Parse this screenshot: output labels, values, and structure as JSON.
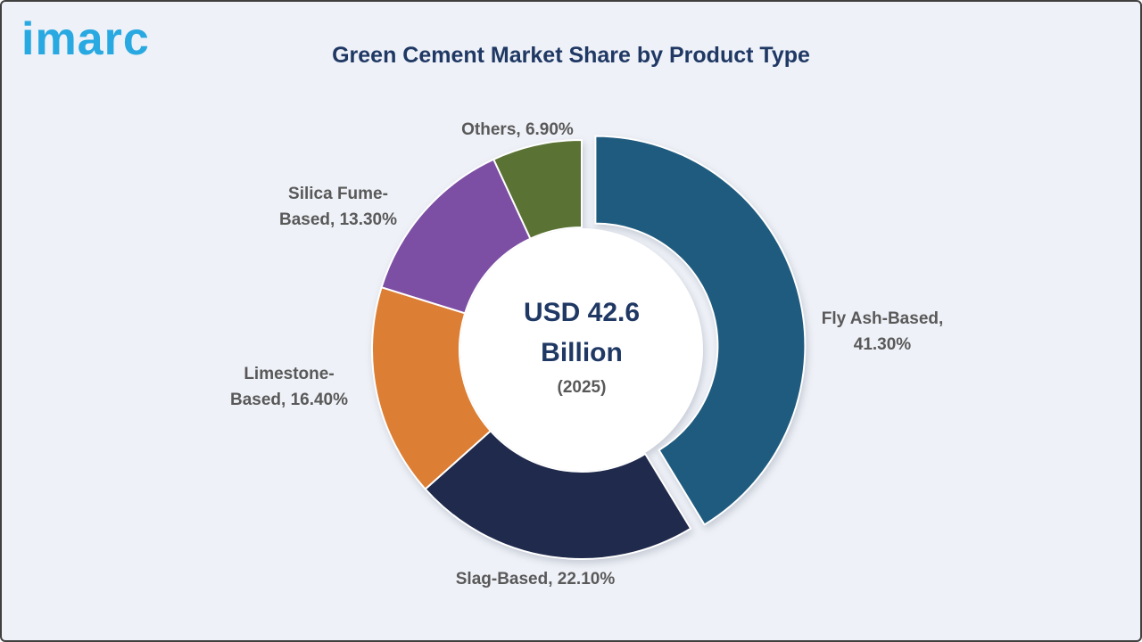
{
  "brand": {
    "logo_text": "imarc",
    "logo_color": "#29A9E1"
  },
  "chart_data": {
    "type": "pie",
    "subtype": "donut",
    "title": "Green Cement Market Share by Product Type",
    "unit": "%",
    "direction": "clockwise",
    "start_angle_deg": 0,
    "legend_position": "outside-labels",
    "center": {
      "value_label": "USD 42.6 Billion",
      "year_label": "(2025)"
    },
    "slices": [
      {
        "label": "Fly Ash-Based",
        "value": 41.3,
        "display": "Fly Ash-Based, 41.30%",
        "color": "#1F5B7E",
        "exploded": true
      },
      {
        "label": "Slag-Based",
        "value": 22.1,
        "display": "Slag-Based, 22.10%",
        "color": "#1F2A4C",
        "exploded": false
      },
      {
        "label": "Limestone-Based",
        "value": 16.4,
        "display": "Limestone-Based, 16.40%",
        "color": "#DC7E34",
        "exploded": false
      },
      {
        "label": "Silica Fume-Based",
        "value": 13.3,
        "display": "Silica Fume-Based, 13.30%",
        "color": "#7C4FA4",
        "exploded": false
      },
      {
        "label": "Others",
        "value": 6.9,
        "display": "Others, 6.90%",
        "color": "#5A7234",
        "exploded": false
      }
    ]
  }
}
